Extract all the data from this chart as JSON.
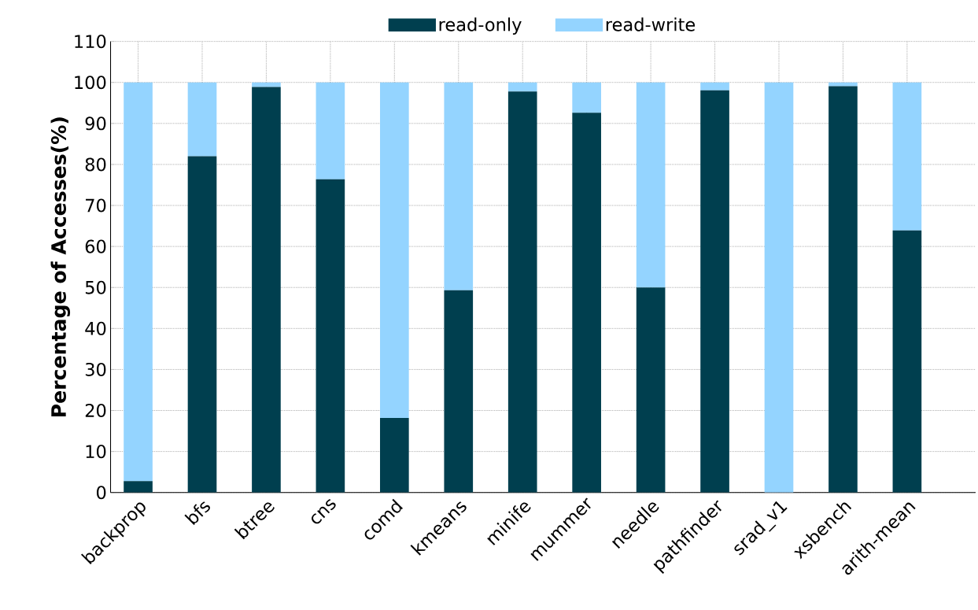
{
  "chart_data": {
    "type": "bar",
    "stacked": true,
    "ylabel": "Percentage of Accesses(%)",
    "categories": [
      "backprop",
      "bfs",
      "btree",
      "cns",
      "comd",
      "kmeans",
      "minife",
      "mummer",
      "needle",
      "pathfinder",
      "srad_v1",
      "xsbench",
      "arith-mean"
    ],
    "series": [
      {
        "name": "read-only",
        "color": "#003f4f",
        "values": [
          2.8,
          82.0,
          98.9,
          76.4,
          18.2,
          49.3,
          97.8,
          92.6,
          50.0,
          98.1,
          0,
          99.1,
          63.9
        ]
      },
      {
        "name": "read-write",
        "color": "#94d4ff",
        "values": [
          97.2,
          18.0,
          1.1,
          23.6,
          81.8,
          50.7,
          2.2,
          7.4,
          50.0,
          1.9,
          100,
          0.9,
          36.1
        ]
      }
    ],
    "ylim": [
      0,
      110
    ],
    "yticks": [
      0,
      10,
      20,
      30,
      40,
      50,
      60,
      70,
      80,
      90,
      100,
      110
    ],
    "grid": true,
    "legend": "top"
  }
}
